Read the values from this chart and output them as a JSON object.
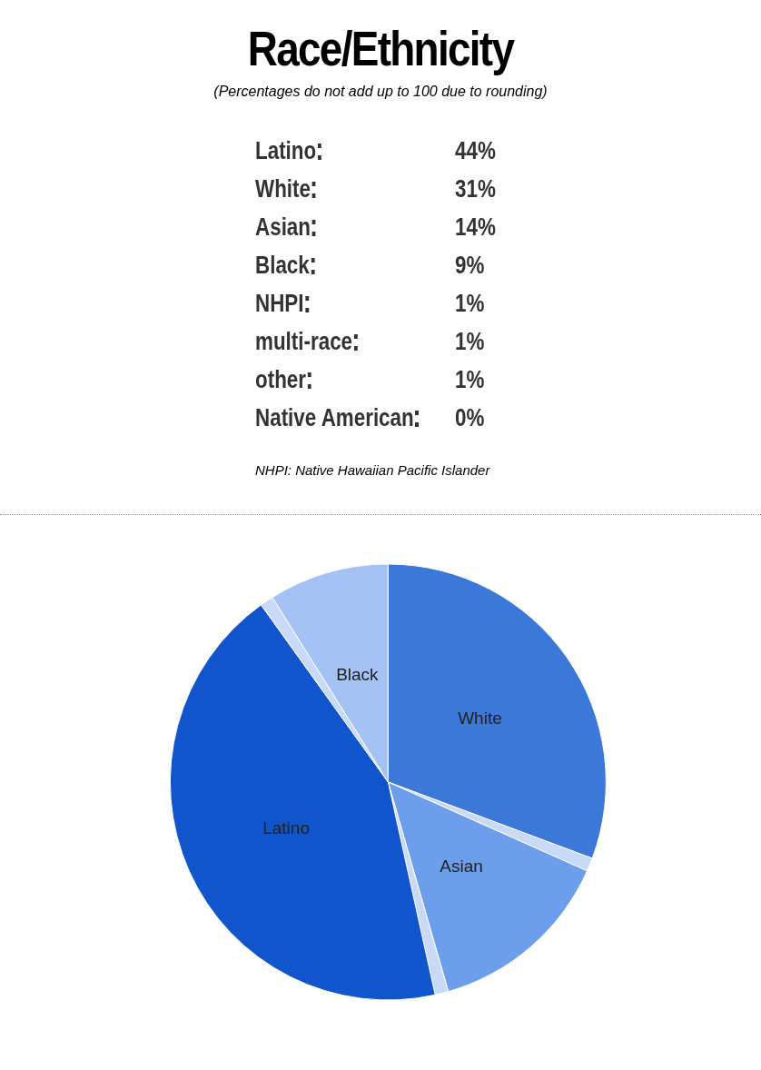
{
  "chart_data": [
    {
      "type": "other",
      "title": "Race/Ethnicity",
      "subtitle": "(Percentages do not add up to 100 due to rounding)",
      "categories": [
        "Latino",
        "White",
        "Asian",
        "Black",
        "NHPI",
        "multi-race",
        "other",
        "Native American"
      ],
      "value_labels": [
        "44%",
        "31%",
        "14%",
        "9%",
        "1%",
        "1%",
        "1%",
        "0%"
      ],
      "annotations": [
        "NHPI: Native Hawaiian Pacific Islander"
      ]
    },
    {
      "type": "pie",
      "categories": [
        "White",
        null,
        "Asian",
        null,
        "Latino",
        null,
        "Black",
        null
      ],
      "values": [
        31,
        1,
        14,
        1,
        44,
        1,
        9,
        0
      ],
      "colors": [
        "#3c78d8",
        "#c9daf8",
        "#6d9eeb",
        "#c9daf8",
        "#1155cc",
        "#c9daf8",
        "#a4c2f4",
        "#c9daf8"
      ],
      "legend": false
    }
  ]
}
